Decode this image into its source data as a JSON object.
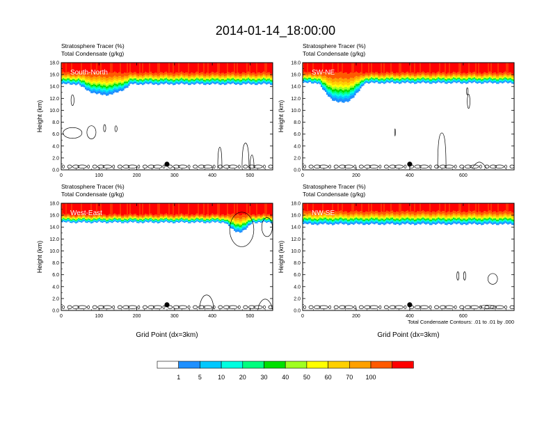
{
  "title": "2014-01-14_18:00:00",
  "palette": [
    "#ffffff",
    "#1e90ff",
    "#00c8ff",
    "#00ffe0",
    "#00ff7f",
    "#00e000",
    "#a0ff20",
    "#ffff00",
    "#ffd000",
    "#ffa000",
    "#ff5a00",
    "#ff0000"
  ],
  "colorbar": {
    "labels": [
      "1",
      "5",
      "10",
      "20",
      "30",
      "40",
      "50",
      "60",
      "70",
      "100"
    ]
  },
  "footnote": "Total Condensate Contours: .01 to .01 by .000",
  "chart_data": [
    {
      "type": "heatmap",
      "label": "South-North",
      "title_lines": [
        "Stratosphere Tracer   (%)",
        "Total Condensate   (g/kg)"
      ],
      "ylabel": "Height (km)",
      "xlabel": "",
      "xlim": [
        0,
        560
      ],
      "ylim": [
        0,
        18
      ],
      "xticks": [
        0,
        100,
        200,
        300,
        400,
        500
      ],
      "yticks": [
        "0.0",
        "2.0",
        "4.0",
        "6.0",
        "8.0",
        "10.0",
        "12.0",
        "14.0",
        "16.0",
        "18.0"
      ],
      "tracer_base_km": 14.4,
      "red_base_km": 16.3,
      "bulges": [
        {
          "center": 115,
          "halfwidth": 70,
          "depth_km": 1.8
        }
      ],
      "contours": [
        {
          "x": 30,
          "y": 11.7,
          "rx": 4,
          "ry": 0.9
        },
        {
          "x": 30,
          "y": 6.2,
          "rx": 25,
          "ry": 0.9
        },
        {
          "x": 80,
          "y": 6.3,
          "rx": 12,
          "ry": 1.1
        },
        {
          "x": 115,
          "y": 7.0,
          "rx": 3,
          "ry": 0.6
        },
        {
          "x": 145,
          "y": 6.9,
          "rx": 3,
          "ry": 0.5
        }
      ],
      "towers": [
        {
          "x": 420,
          "top_km": 3.8,
          "width": 6
        },
        {
          "x": 488,
          "top_km": 4.5,
          "width": 10
        },
        {
          "x": 505,
          "top_km": 2.5,
          "width": 6
        }
      ],
      "marker": {
        "x": 280,
        "y_km": 0.95
      }
    },
    {
      "type": "heatmap",
      "label": "SW-NE",
      "title_lines": [
        "Stratosphere Tracer   (%)",
        "Total Condensate   (g/kg)"
      ],
      "ylabel": "Height (km)",
      "xlabel": "",
      "xlim": [
        0,
        790
      ],
      "ylim": [
        0,
        18
      ],
      "xticks": [
        0,
        200,
        400,
        600
      ],
      "yticks": [
        "0.0",
        "2.0",
        "4.0",
        "6.0",
        "8.0",
        "10.0",
        "12.0",
        "14.0",
        "16.0",
        "18.0"
      ],
      "tracer_base_km": 14.6,
      "red_base_km": 16.3,
      "bulges": [
        {
          "center": 145,
          "halfwidth": 85,
          "depth_km": 3.3
        }
      ],
      "contours": [
        {
          "x": 620,
          "y": 11.5,
          "rx": 5,
          "ry": 1.2
        },
        {
          "x": 615,
          "y": 13.2,
          "rx": 3,
          "ry": 0.6
        },
        {
          "x": 345,
          "y": 6.3,
          "rx": 1.5,
          "ry": 0.6
        }
      ],
      "towers": [
        {
          "x": 520,
          "top_km": 6.2,
          "width": 12
        },
        {
          "x": 660,
          "top_km": 1.3,
          "width": 20
        }
      ],
      "marker": {
        "x": 400,
        "y_km": 0.95
      }
    },
    {
      "type": "heatmap",
      "label": "West-East",
      "title_lines": [
        "Stratosphere Tracer   (%)",
        "Total Condensate   (g/kg)"
      ],
      "ylabel": "Height (km)",
      "xlabel": "Grid Point (dx=3km)",
      "xlim": [
        0,
        560
      ],
      "ylim": [
        0,
        18
      ],
      "xticks": [
        0,
        100,
        200,
        300,
        400,
        500
      ],
      "yticks": [
        "0.0",
        "2.0",
        "4.0",
        "6.0",
        "8.0",
        "10.0",
        "12.0",
        "14.0",
        "16.0",
        "18.0"
      ],
      "tracer_base_km": 14.8,
      "red_base_km": 16.1,
      "bulges": [
        {
          "center": 470,
          "halfwidth": 35,
          "depth_km": 1.6
        }
      ],
      "contours": [
        {
          "x": 478,
          "y": 13.6,
          "rx": 32,
          "ry": 2.9
        },
        {
          "x": 545,
          "y": 14.0,
          "rx": 14,
          "ry": 1.6
        }
      ],
      "towers": [
        {
          "x": 385,
          "top_km": 2.6,
          "width": 20
        },
        {
          "x": 540,
          "top_km": 1.9,
          "width": 20
        }
      ],
      "marker": {
        "x": 280,
        "y_km": 0.95
      }
    },
    {
      "type": "heatmap",
      "label": "NW-SE",
      "title_lines": [
        "Stratosphere Tracer   (%)",
        "Total Condensate   (g/kg)"
      ],
      "ylabel": "Height (km)",
      "xlabel": "Grid Point (dx=3km)",
      "xlim": [
        0,
        790
      ],
      "ylim": [
        0,
        18
      ],
      "xticks": [
        0,
        200,
        400,
        600
      ],
      "yticks": [
        "0.0",
        "2.0",
        "4.0",
        "6.0",
        "8.0",
        "10.0",
        "12.0",
        "14.0",
        "16.0",
        "18.0"
      ],
      "tracer_base_km": 14.5,
      "red_base_km": 16.6,
      "bulges": [],
      "contours": [
        {
          "x": 580,
          "y": 5.8,
          "rx": 4,
          "ry": 0.7
        },
        {
          "x": 605,
          "y": 5.8,
          "rx": 4,
          "ry": 0.7
        },
        {
          "x": 710,
          "y": 5.3,
          "rx": 18,
          "ry": 0.9
        },
        {
          "x": 690,
          "y": 0.6,
          "rx": 25,
          "ry": 0.3
        }
      ],
      "towers": [],
      "marker": {
        "x": 400,
        "y_km": 0.95
      }
    }
  ]
}
